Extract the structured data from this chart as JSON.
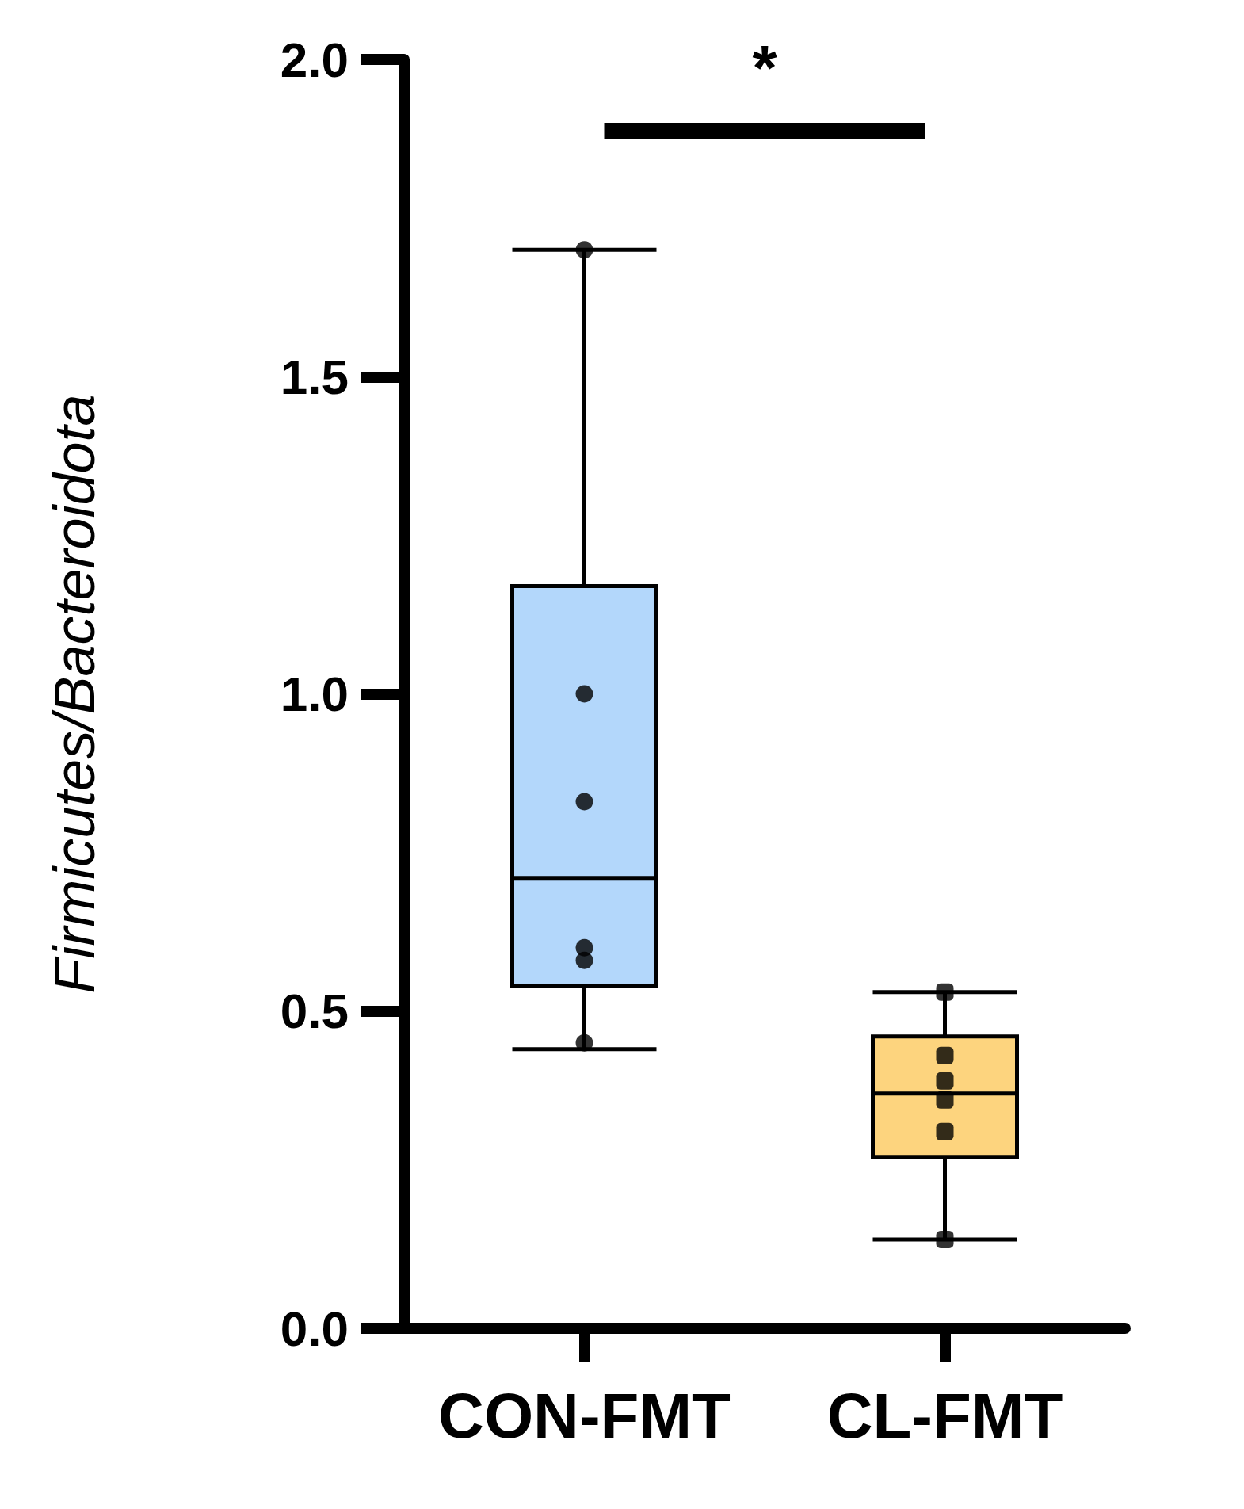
{
  "chart_data": {
    "type": "box",
    "ylabel": "Firmicutes/Bacteroidota",
    "categories": [
      "CON-FMT",
      "CL-FMT"
    ],
    "series": [
      {
        "colors": [
          "#b3d7fb",
          "#fdd47e"
        ],
        "boxes": [
          {
            "low": 0.44,
            "q1": 0.54,
            "median": 0.71,
            "q3": 1.17,
            "high": 1.7
          },
          {
            "low": 0.14,
            "q1": 0.27,
            "median": 0.37,
            "q3": 0.46,
            "high": 0.53
          }
        ]
      },
      {
        "type": "scatter",
        "color": "#000000",
        "marker": "circle",
        "x": [
          "CON-FMT",
          "CON-FMT",
          "CON-FMT",
          "CON-FMT",
          "CON-FMT",
          "CON-FMT"
        ],
        "values": [
          1.7,
          1.0,
          0.83,
          0.6,
          0.58,
          0.45
        ]
      },
      {
        "type": "scatter",
        "color": "#000000",
        "marker": "square",
        "x": [
          "CL-FMT",
          "CL-FMT",
          "CL-FMT",
          "CL-FMT",
          "CL-FMT",
          "CL-FMT"
        ],
        "values": [
          0.53,
          0.43,
          0.39,
          0.36,
          0.31,
          0.14
        ]
      }
    ],
    "ylim": [
      0,
      2
    ],
    "yticks": [
      {
        "value": 0,
        "label": "0.0"
      },
      {
        "value": 0.5,
        "label": "0.5"
      },
      {
        "value": 1,
        "label": "1.0"
      },
      {
        "value": 1.5,
        "label": "1.5"
      },
      {
        "value": 2,
        "label": "2.0"
      }
    ],
    "annotations": [
      "*"
    ],
    "grid": false
  }
}
